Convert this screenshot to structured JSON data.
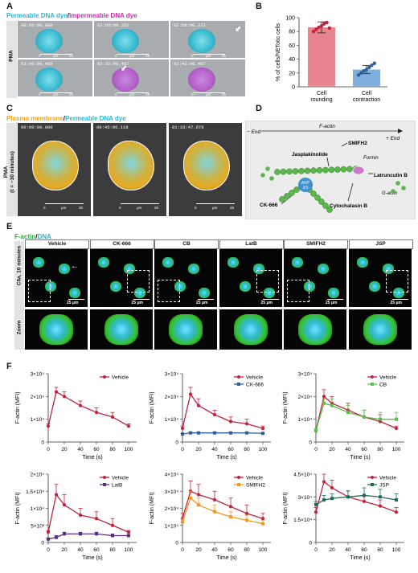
{
  "panels": {
    "A": {
      "label": "A",
      "header_cyan": "Permeable DNA dye",
      "header_sep": "/",
      "header_magenta": "Impermeable DNA dye",
      "side_label": "PMA",
      "frames": [
        {
          "time": "00:00:00.000",
          "scale_0": "0",
          "scale_unit": "μm",
          "scale_max": "25"
        },
        {
          "time": "02:00:00.251",
          "scale_0": "0",
          "scale_unit": "μm",
          "scale_max": "25"
        },
        {
          "time": "02:58:00.372",
          "scale_0": "0",
          "scale_unit": "μm",
          "scale_max": "25"
        },
        {
          "time": "03:00:00.400",
          "scale_0": "0",
          "scale_unit": "μm",
          "scale_max": "25"
        },
        {
          "time": "03:32:00.467",
          "scale_0": "0",
          "scale_unit": "μm",
          "scale_max": "25"
        },
        {
          "time": "03:42:00.487",
          "scale_0": "0",
          "scale_unit": "μm",
          "scale_max": "25"
        }
      ]
    },
    "B": {
      "label": "B"
    },
    "C": {
      "label": "C",
      "header_orange": "Plasma membrane",
      "header_sep": "/",
      "header_cyan": "Permeable DNA dye",
      "side_label_1": "PMA",
      "side_label_2": "(t = −30 minutes)",
      "frames": [
        {
          "time": "00:00:00.000",
          "scale_0": "0",
          "scale_unit": "μm",
          "scale_max": "25"
        },
        {
          "time": "00:45:00.118",
          "scale_0": "0",
          "scale_unit": "μm",
          "scale_max": "25"
        },
        {
          "time": "01:33:47.679",
          "scale_0": "0",
          "scale_unit": "μm",
          "scale_max": "25"
        }
      ]
    },
    "D": {
      "label": "D",
      "minus_end": "− End",
      "factin": "F-actin",
      "plus_end": "+ End",
      "jasplakinolide": "Jasplakinolide",
      "smifh2": "SMIFH2",
      "formin": "Formin",
      "latrunculin": "Latrunculin B",
      "gactin": "G-actin",
      "arp": "ARP\n2/3",
      "arp1": "ARP",
      "arp2": "2/3",
      "ck666": "CK-666",
      "cytochalasin": "Cytochalasin B"
    },
    "E": {
      "label": "E",
      "header_green": "F-actin",
      "header_sep": "/",
      "header_cyan": "DNA",
      "side_label": "C5a, 10 minutes",
      "zoom_label": "Zoom",
      "scale": "25 μm",
      "conditions": [
        "Vehicle",
        "CK-666",
        "CB",
        "LatB",
        "SMIFH2",
        "JSP"
      ]
    },
    "F": {
      "label": "F"
    }
  },
  "chart_data": [
    {
      "id": "B",
      "type": "bar",
      "categories": [
        "Cell rounding",
        "Cell contraction"
      ],
      "category_lines": [
        [
          "Cell",
          "rounding"
        ],
        [
          "Cell",
          "contraction"
        ]
      ],
      "values": [
        86,
        25
      ],
      "errors": [
        8,
        6
      ],
      "points": [
        [
          80,
          83,
          86,
          88,
          91,
          93,
          85
        ],
        [
          17,
          20,
          23,
          25,
          28,
          31,
          34
        ]
      ],
      "colors": [
        "#e8848d",
        "#7fb0dd"
      ],
      "ylabel": "% of cells/NETotic cells",
      "ylim": [
        0,
        100
      ],
      "yticks": [
        0,
        20,
        40,
        60,
        80,
        100
      ]
    },
    {
      "id": "F1",
      "type": "line",
      "xlabel": "Time (s)",
      "ylabel": "F-actin (MFI)",
      "xlim": [
        0,
        320
      ],
      "xticks": [
        0,
        20,
        40,
        60,
        80,
        100
      ],
      "xtick_labels": [
        "0",
        "20",
        "40",
        "60",
        "80",
        "100"
      ],
      "ylim": [
        0,
        30000
      ],
      "yticks": [
        0,
        10000,
        20000,
        30000
      ],
      "ytick_labels": [
        "0",
        "1×10⁴",
        "2×10⁴",
        "3×10⁴"
      ],
      "series": [
        {
          "name": "Vehicle",
          "color": "#c2213f",
          "marker": "circle",
          "x": [
            0,
            10,
            20,
            40,
            60,
            80,
            100
          ],
          "y": [
            7000,
            22000,
            20000,
            16000,
            13000,
            11000,
            7000
          ],
          "err": [
            1000,
            2000,
            2000,
            2000,
            2000,
            2000,
            1000
          ]
        }
      ]
    },
    {
      "id": "F2",
      "type": "line",
      "xlabel": "Time (s)",
      "ylabel": "F-actin (MFI)",
      "xlim": [
        0,
        320
      ],
      "xticks": [
        0,
        20,
        40,
        60,
        80,
        100
      ],
      "xtick_labels": [
        "0",
        "20",
        "40",
        "60",
        "80",
        "100"
      ],
      "ylim": [
        0,
        30000
      ],
      "yticks": [
        0,
        10000,
        20000,
        30000
      ],
      "ytick_labels": [
        "0",
        "1×10⁴",
        "2×10⁴",
        "3×10⁴"
      ],
      "series": [
        {
          "name": "Vehicle",
          "color": "#c2213f",
          "marker": "circle",
          "x": [
            0,
            10,
            20,
            40,
            60,
            80,
            100
          ],
          "y": [
            6000,
            21000,
            16000,
            12000,
            9000,
            8000,
            6000
          ],
          "err": [
            1000,
            3000,
            3000,
            2000,
            2000,
            2000,
            1000
          ]
        },
        {
          "name": "CK-666",
          "color": "#2f5f9a",
          "marker": "square",
          "x": [
            0,
            10,
            20,
            40,
            60,
            80,
            100
          ],
          "y": [
            3500,
            4000,
            4000,
            4000,
            4000,
            4000,
            3800
          ],
          "err": [
            300,
            300,
            300,
            300,
            300,
            300,
            300
          ]
        }
      ]
    },
    {
      "id": "F3",
      "type": "line",
      "xlabel": "Time (s)",
      "ylabel": "F-actin (MFI)",
      "xlim": [
        0,
        320
      ],
      "xticks": [
        0,
        20,
        40,
        60,
        80,
        100
      ],
      "xtick_labels": [
        "0",
        "20",
        "40",
        "60",
        "80",
        "100"
      ],
      "ylim": [
        0,
        30000
      ],
      "yticks": [
        0,
        10000,
        20000,
        30000
      ],
      "ytick_labels": [
        "0",
        "1×10⁴",
        "2×10⁴",
        "3×10⁴"
      ],
      "series": [
        {
          "name": "Vehicle",
          "color": "#c2213f",
          "marker": "circle",
          "x": [
            0,
            10,
            20,
            40,
            60,
            80,
            100
          ],
          "y": [
            5000,
            20000,
            17000,
            14000,
            11000,
            9000,
            6000
          ],
          "err": [
            1000,
            3000,
            3000,
            3000,
            3000,
            3000,
            1000
          ]
        },
        {
          "name": "CB",
          "color": "#5bbf4b",
          "marker": "square",
          "x": [
            0,
            10,
            20,
            40,
            60,
            80,
            100
          ],
          "y": [
            5000,
            17000,
            16000,
            13000,
            11000,
            10000,
            10000
          ],
          "err": [
            1000,
            2000,
            3000,
            3000,
            3000,
            3000,
            3000
          ]
        }
      ]
    },
    {
      "id": "F4",
      "type": "line",
      "xlabel": "Time (s)",
      "ylabel": "F-actin (MFI)",
      "xlim": [
        0,
        320
      ],
      "xticks": [
        0,
        20,
        40,
        60,
        80,
        100
      ],
      "xtick_labels": [
        "0",
        "20",
        "40",
        "60",
        "80",
        "100"
      ],
      "ylim": [
        0,
        20000
      ],
      "yticks": [
        0,
        5000,
        10000,
        15000,
        20000
      ],
      "ytick_labels": [
        "0",
        "5×10³",
        "1×10⁴",
        "1.5×10⁴",
        "2×10⁴"
      ],
      "series": [
        {
          "name": "Vehicle",
          "color": "#c2213f",
          "marker": "circle",
          "x": [
            0,
            10,
            20,
            40,
            60,
            80,
            100
          ],
          "y": [
            3000,
            14000,
            11000,
            8000,
            7000,
            5000,
            3000
          ],
          "err": [
            500,
            3000,
            3000,
            2000,
            2000,
            2000,
            500
          ]
        },
        {
          "name": "LatB",
          "color": "#5a2e82",
          "marker": "square",
          "x": [
            0,
            10,
            20,
            40,
            60,
            80,
            100
          ],
          "y": [
            1000,
            1500,
            2500,
            2500,
            2500,
            2000,
            2000
          ],
          "err": [
            300,
            500,
            500,
            500,
            500,
            500,
            300
          ]
        }
      ]
    },
    {
      "id": "F5",
      "type": "line",
      "xlabel": "Time (s)",
      "ylabel": "F-actin (MFI)",
      "xlim": [
        0,
        320
      ],
      "xticks": [
        0,
        20,
        40,
        60,
        80,
        100
      ],
      "xtick_labels": [
        "0",
        "20",
        "40",
        "60",
        "80",
        "100"
      ],
      "ylim": [
        0,
        40000
      ],
      "yticks": [
        0,
        10000,
        20000,
        30000,
        40000
      ],
      "ytick_labels": [
        "0",
        "1×10⁴",
        "2×10⁴",
        "3×10⁴",
        "4×10⁴"
      ],
      "series": [
        {
          "name": "Vehicle",
          "color": "#c2213f",
          "marker": "circle",
          "x": [
            0,
            10,
            20,
            40,
            60,
            80,
            100
          ],
          "y": [
            14000,
            30000,
            28000,
            25000,
            21000,
            17000,
            14000
          ],
          "err": [
            3000,
            6000,
            6000,
            5000,
            5000,
            5000,
            3000
          ]
        },
        {
          "name": "SMIFH2",
          "color": "#f39a1e",
          "marker": "square",
          "x": [
            0,
            10,
            20,
            40,
            60,
            80,
            100
          ],
          "y": [
            12000,
            26000,
            22000,
            18000,
            15000,
            13000,
            11000
          ],
          "err": [
            2000,
            4000,
            4000,
            4000,
            3000,
            3000,
            2000
          ]
        }
      ]
    },
    {
      "id": "F6",
      "type": "line",
      "xlabel": "Time (s)",
      "ylabel": "F-actin (MFI)",
      "xlim": [
        0,
        320
      ],
      "xticks": [
        0,
        20,
        40,
        60,
        80,
        100
      ],
      "xtick_labels": [
        "0",
        "20",
        "40",
        "60",
        "80",
        "100"
      ],
      "ylim": [
        0,
        45000
      ],
      "yticks": [
        0,
        15000,
        30000,
        45000
      ],
      "ytick_labels": [
        "0",
        "1.5×10⁴",
        "3×10⁴",
        "4.5×10⁴"
      ],
      "series": [
        {
          "name": "Vehicle",
          "color": "#c2213f",
          "marker": "circle",
          "x": [
            0,
            10,
            20,
            40,
            60,
            80,
            100
          ],
          "y": [
            20000,
            40000,
            36000,
            30000,
            27000,
            24000,
            20000
          ],
          "err": [
            3000,
            5000,
            5000,
            4000,
            4000,
            4000,
            3000
          ]
        },
        {
          "name": "JSP",
          "color": "#1d6b5b",
          "marker": "square",
          "x": [
            0,
            10,
            20,
            40,
            60,
            80,
            100
          ],
          "y": [
            25000,
            28000,
            29000,
            30000,
            31000,
            30000,
            28000
          ],
          "err": [
            2000,
            3000,
            3000,
            4000,
            5000,
            5000,
            4000
          ]
        }
      ]
    }
  ]
}
